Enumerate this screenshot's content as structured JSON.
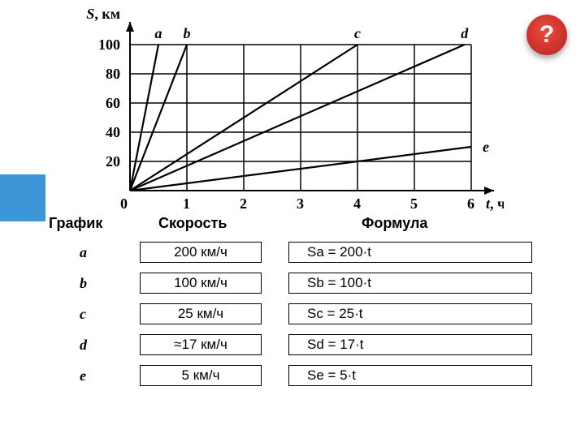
{
  "help": {
    "label": "?"
  },
  "chart": {
    "type": "line",
    "y_axis_label": "S, км",
    "x_axis_label": "t, ч",
    "y_axis_label_fontstyle": "italic-first-letter",
    "x_axis_label_fontstyle": "italic-first-letter",
    "axis_font": "Times New Roman",
    "xlim": [
      0,
      6
    ],
    "ylim": [
      0,
      100
    ],
    "xtick_labels": [
      0,
      1,
      2,
      3,
      4,
      5,
      6
    ],
    "ytick_labels": [
      20,
      40,
      60,
      80,
      100
    ],
    "xtick_step": 1,
    "ytick_step": 20,
    "grid_color": "#000000",
    "axis_color": "#000000",
    "axis_stroke_width": 2,
    "grid_stroke_width": 1.5,
    "line_stroke_width": 2.2,
    "background_color": "#ffffff",
    "series": [
      {
        "name": "a",
        "slope": 200,
        "color": "#000000",
        "label_pos": "top"
      },
      {
        "name": "b",
        "slope": 100,
        "color": "#000000",
        "label_pos": "top"
      },
      {
        "name": "c",
        "slope": 25,
        "color": "#000000",
        "label_pos": "top"
      },
      {
        "name": "d",
        "slope": 17,
        "color": "#000000",
        "label_pos": "top"
      },
      {
        "name": "e",
        "slope": 5,
        "color": "#000000",
        "label_pos": "right"
      }
    ]
  },
  "headers": {
    "series": "График",
    "speed": "Скорость",
    "formula": "Формула"
  },
  "rows": [
    {
      "series": "a",
      "speed": "200 км/ч",
      "formula": "Sa = 200·t"
    },
    {
      "series": "b",
      "speed": "100 км/ч",
      "formula": "Sb = 100·t"
    },
    {
      "series": "c",
      "speed": "25 км/ч",
      "formula": "Sc = 25·t"
    },
    {
      "series": "d",
      "speed": "≈17 км/ч",
      "formula": "Sd = 17·t"
    },
    {
      "series": "e",
      "speed": "5 км/ч",
      "formula": "Se = 5·t"
    }
  ]
}
